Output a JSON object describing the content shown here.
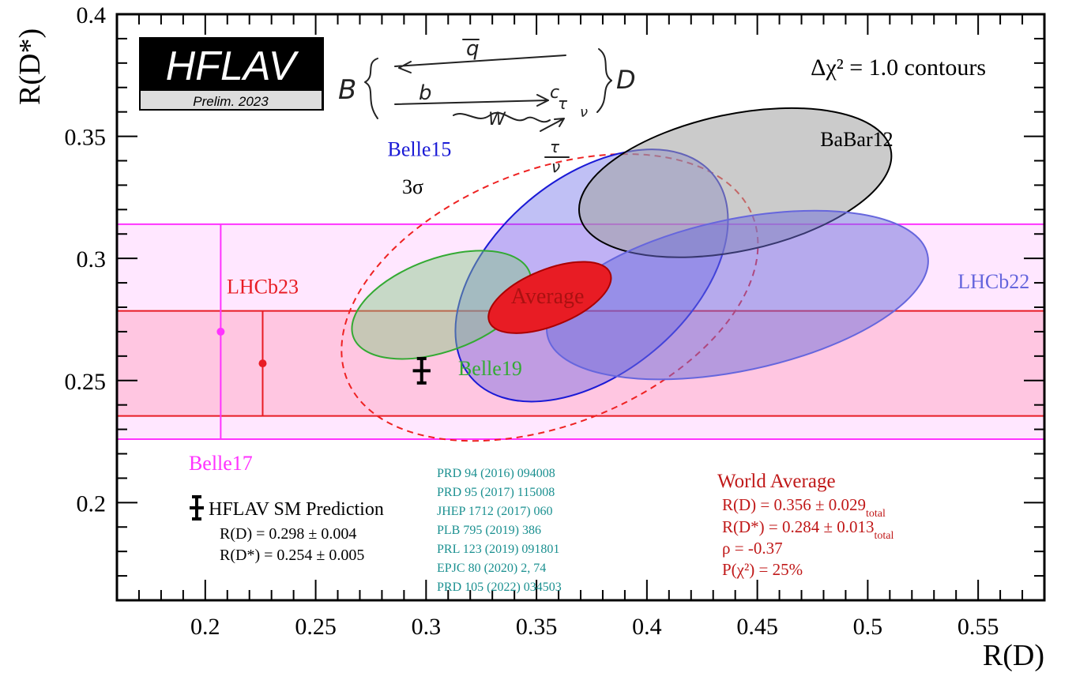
{
  "chart_data": {
    "type": "scatter",
    "title": "",
    "xlabel": "R(D)",
    "ylabel": "R(D*)",
    "xlim": [
      0.16,
      0.58
    ],
    "ylim": [
      0.16,
      0.4
    ],
    "x_ticks": [
      {
        "value": 0.2,
        "label": "0.2"
      },
      {
        "value": 0.25,
        "label": "0.25"
      },
      {
        "value": 0.3,
        "label": "0.3"
      },
      {
        "value": 0.35,
        "label": "0.35"
      },
      {
        "value": 0.4,
        "label": "0.4"
      },
      {
        "value": 0.45,
        "label": "0.45"
      },
      {
        "value": 0.5,
        "label": "0.5"
      },
      {
        "value": 0.55,
        "label": "0.55"
      }
    ],
    "y_ticks": [
      {
        "value": 0.2,
        "label": "0.2"
      },
      {
        "value": 0.25,
        "label": "0.25"
      },
      {
        "value": 0.3,
        "label": "0.3"
      },
      {
        "value": 0.35,
        "label": "0.35"
      },
      {
        "value": 0.4,
        "label": "0.4"
      }
    ],
    "contour_label": "Δχ² = 1.0 contours",
    "logo": {
      "main": "HFLAV",
      "sub": "Prelim. 2023"
    },
    "ellipses": [
      {
        "name": "3σ",
        "label": "3σ",
        "cx": 0.356,
        "cy": 0.284,
        "rx": 0.099,
        "ry": 0.052,
        "rotation_deg": 22,
        "stroke": "#ee2222",
        "fill": "none",
        "dashed": true,
        "label_x": 0.294,
        "label_y": 0.3265,
        "label_color": "#000000"
      },
      {
        "name": "Belle15",
        "label": "Belle15",
        "cx": 0.375,
        "cy": 0.293,
        "rx": 0.0715,
        "ry": 0.04,
        "rotation_deg": 40,
        "stroke": "#1a1ad6",
        "fill": "rgba(90,90,230,0.38)",
        "dashed": false,
        "label_x": 0.297,
        "label_y": 0.342,
        "label_color": "#1a1ad6"
      },
      {
        "name": "BaBar12",
        "label": "BaBar12",
        "cx": 0.44,
        "cy": 0.331,
        "rx": 0.072,
        "ry": 0.028,
        "rotation_deg": 12,
        "stroke": "#000000",
        "fill": "rgba(160,160,160,0.55)",
        "dashed": false,
        "label_x": 0.495,
        "label_y": 0.346,
        "label_color": "#000000"
      },
      {
        "name": "LHCb22",
        "label": "LHCb22",
        "cx": 0.441,
        "cy": 0.285,
        "rx": 0.088,
        "ry": 0.031,
        "rotation_deg": 12,
        "stroke": "#6666dd",
        "fill": "rgba(110,110,220,0.5)",
        "dashed": false,
        "label_x": 0.557,
        "label_y": 0.2878,
        "label_color": "#6666dd"
      },
      {
        "name": "Belle19",
        "label": "Belle19",
        "cx": 0.307,
        "cy": 0.281,
        "rx": 0.0425,
        "ry": 0.019,
        "rotation_deg": 20,
        "stroke": "#33aa33",
        "fill": "rgba(130,200,130,0.45)",
        "dashed": false,
        "label_x": 0.329,
        "label_y": 0.2522,
        "label_color": "#33aa33"
      },
      {
        "name": "Average",
        "label": "Average",
        "cx": 0.356,
        "cy": 0.284,
        "rx": 0.0295,
        "ry": 0.0115,
        "rotation_deg": 22,
        "stroke": "#aa0000",
        "fill": "#e81c24",
        "dashed": false,
        "label_x": 0.355,
        "label_y": 0.2816,
        "label_color": "#aa1111"
      }
    ],
    "bands": [
      {
        "name": "Belle17",
        "label": "Belle17",
        "x": 0.207,
        "y": 0.27,
        "ylow": 0.226,
        "yhigh": 0.314,
        "color": "#ff33ff",
        "fill": "rgba(255,120,255,0.18)",
        "label_x": 0.207,
        "label_y": 0.2133
      },
      {
        "name": "LHCb23",
        "label": "LHCb23",
        "x": 0.226,
        "y": 0.257,
        "ylow": 0.2355,
        "yhigh": 0.2785,
        "color": "#e81c24",
        "fill": "rgba(255,80,120,0.22)",
        "label_x": 0.226,
        "label_y": 0.2857
      }
    ],
    "sm_point": {
      "x": 0.298,
      "y": 0.254,
      "xerr": 0.004,
      "yerr": 0.005
    }
  },
  "sm_legend": {
    "title": "HFLAV SM Prediction",
    "rd": "R(D) = 0.298 ± 0.004",
    "rdstar": "R(D*) = 0.254 ± 0.005"
  },
  "references": [
    "PRD 94 (2016) 094008",
    "PRD 95 (2017) 115008",
    "JHEP 1712 (2017) 060",
    "PLB 795 (2019) 386",
    "PRL 123 (2019) 091801",
    "EPJC 80 (2020) 2, 74",
    "PRD 105 (2022) 034503"
  ],
  "world_average": {
    "title": "World Average",
    "rd": "R(D) = 0.356 ± 0.029",
    "rd_sub": "total",
    "rdstar": "R(D*) = 0.284 ± 0.013",
    "rdstar_sub": "total",
    "rho": "ρ = -0.37",
    "pchi2": "P(χ²) = 25%"
  },
  "annotation": {
    "b": "B",
    "qbar": "q",
    "quark_b": "b",
    "quark_c": "c",
    "w": "W",
    "tau": "τ",
    "nu": "ν",
    "tau_lower": "τ",
    "nu_lower": "ν",
    "d": "D"
  },
  "colors": {
    "axis": "#000000",
    "references": "#1a9090",
    "world_average": "#c01818"
  }
}
